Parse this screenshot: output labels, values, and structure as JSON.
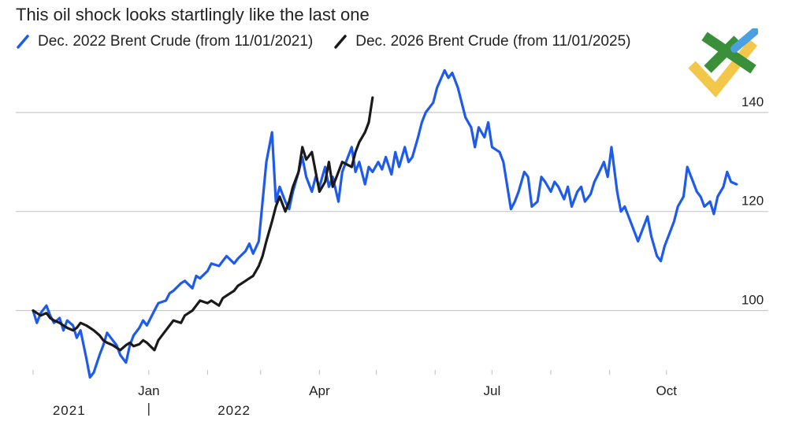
{
  "colors": {
    "series_a": "#1f5bea",
    "series_b": "#1a1a1a",
    "grid": "#c9c9c9",
    "text": "#222222",
    "logo_green": "#3a8f3a",
    "logo_yellow": "#f3c84a",
    "logo_blue": "#4aa0e0"
  },
  "chart_data": {
    "type": "line",
    "title": "This oil shock looks startlingly like the last one",
    "xlabel": "",
    "ylabel": "",
    "grid": true,
    "legend_position": "top-left",
    "ylim": [
      88,
      150
    ],
    "y_ticks": [
      {
        "value": 140,
        "label": "140"
      },
      {
        "value": 120,
        "label": "120"
      },
      {
        "value": 100,
        "label": "100"
      }
    ],
    "x_ticks": [
      {
        "date": "2022-01-01",
        "label": "Jan"
      },
      {
        "date": "2022-04-01",
        "label": "Apr"
      },
      {
        "date": "2022-07-01",
        "label": "Jul"
      },
      {
        "date": "2022-10-01",
        "label": "Oct"
      }
    ],
    "x_minor_ticks": [
      "2021-11-01",
      "2021-12-01",
      "2022-02-01",
      "2022-03-01",
      "2022-05-01",
      "2022-06-01",
      "2022-08-01",
      "2022-09-01"
    ],
    "year_labels": [
      {
        "date": "2021-11-20",
        "label": "2021"
      },
      {
        "date": "2022-02-15",
        "label": "2022"
      }
    ],
    "year_divider": "2022-01-01",
    "xlim": [
      "2021-10-27",
      "2022-11-05"
    ],
    "series": [
      {
        "name": "Dec. 2022 Brent Crude (from 11/01/2021)",
        "points": [
          [
            "2021-11-01",
            100
          ],
          [
            "2021-11-03",
            97.5
          ],
          [
            "2021-11-05",
            99.5
          ],
          [
            "2021-11-08",
            101
          ],
          [
            "2021-11-10",
            99
          ],
          [
            "2021-11-12",
            97.5
          ],
          [
            "2021-11-15",
            98.5
          ],
          [
            "2021-11-17",
            96
          ],
          [
            "2021-11-19",
            98
          ],
          [
            "2021-11-22",
            97
          ],
          [
            "2021-11-24",
            94.5
          ],
          [
            "2021-11-26",
            96
          ],
          [
            "2021-11-29",
            90.5
          ],
          [
            "2021-12-01",
            86.5
          ],
          [
            "2021-12-03",
            87.5
          ],
          [
            "2021-12-06",
            91
          ],
          [
            "2021-12-08",
            93
          ],
          [
            "2021-12-10",
            95.5
          ],
          [
            "2021-12-13",
            94
          ],
          [
            "2021-12-15",
            93
          ],
          [
            "2021-12-17",
            91
          ],
          [
            "2021-12-20",
            89.5
          ],
          [
            "2021-12-22",
            93
          ],
          [
            "2021-12-24",
            95
          ],
          [
            "2021-12-27",
            96.5
          ],
          [
            "2021-12-29",
            98
          ],
          [
            "2021-12-31",
            97
          ],
          [
            "2022-01-04",
            100
          ],
          [
            "2022-01-06",
            101.5
          ],
          [
            "2022-01-10",
            102
          ],
          [
            "2022-01-12",
            103.5
          ],
          [
            "2022-01-14",
            104
          ],
          [
            "2022-01-18",
            105.5
          ],
          [
            "2022-01-20",
            106
          ],
          [
            "2022-01-24",
            104.5
          ],
          [
            "2022-01-26",
            107
          ],
          [
            "2022-01-28",
            106.5
          ],
          [
            "2022-02-01",
            108
          ],
          [
            "2022-02-03",
            109.5
          ],
          [
            "2022-02-07",
            109
          ],
          [
            "2022-02-09",
            110
          ],
          [
            "2022-02-11",
            111
          ],
          [
            "2022-02-15",
            109.5
          ],
          [
            "2022-02-17",
            110.5
          ],
          [
            "2022-02-21",
            112
          ],
          [
            "2022-02-23",
            113.5
          ],
          [
            "2022-02-25",
            111.5
          ],
          [
            "2022-02-28",
            114
          ],
          [
            "2022-03-02",
            122
          ],
          [
            "2022-03-04",
            130
          ],
          [
            "2022-03-07",
            136
          ],
          [
            "2022-03-09",
            122
          ],
          [
            "2022-03-11",
            125
          ],
          [
            "2022-03-14",
            122
          ],
          [
            "2022-03-16",
            120.5
          ],
          [
            "2022-03-18",
            124
          ],
          [
            "2022-03-21",
            128
          ],
          [
            "2022-03-23",
            131
          ],
          [
            "2022-03-25",
            127
          ],
          [
            "2022-03-28",
            124
          ],
          [
            "2022-03-30",
            127
          ],
          [
            "2022-04-01",
            125
          ],
          [
            "2022-04-04",
            129
          ],
          [
            "2022-04-06",
            125
          ],
          [
            "2022-04-08",
            127
          ],
          [
            "2022-04-11",
            122
          ],
          [
            "2022-04-13",
            128
          ],
          [
            "2022-04-18",
            133
          ],
          [
            "2022-04-20",
            128
          ],
          [
            "2022-04-22",
            130
          ],
          [
            "2022-04-25",
            125.5
          ],
          [
            "2022-04-27",
            129
          ],
          [
            "2022-04-29",
            128
          ],
          [
            "2022-05-02",
            130
          ],
          [
            "2022-05-04",
            128.5
          ],
          [
            "2022-05-06",
            131
          ],
          [
            "2022-05-09",
            127.5
          ],
          [
            "2022-05-11",
            132
          ],
          [
            "2022-05-13",
            129
          ],
          [
            "2022-05-16",
            133
          ],
          [
            "2022-05-18",
            130
          ],
          [
            "2022-05-20",
            131
          ],
          [
            "2022-05-23",
            135
          ],
          [
            "2022-05-25",
            138
          ],
          [
            "2022-05-27",
            140
          ],
          [
            "2022-05-31",
            142
          ],
          [
            "2022-06-02",
            145
          ],
          [
            "2022-06-06",
            148.5
          ],
          [
            "2022-06-08",
            147
          ],
          [
            "2022-06-10",
            148
          ],
          [
            "2022-06-13",
            145
          ],
          [
            "2022-06-15",
            142
          ],
          [
            "2022-06-17",
            139
          ],
          [
            "2022-06-20",
            137
          ],
          [
            "2022-06-22",
            133
          ],
          [
            "2022-06-24",
            137
          ],
          [
            "2022-06-27",
            135
          ],
          [
            "2022-06-29",
            138
          ],
          [
            "2022-07-01",
            133
          ],
          [
            "2022-07-05",
            132
          ],
          [
            "2022-07-07",
            130
          ],
          [
            "2022-07-11",
            120.5
          ],
          [
            "2022-07-13",
            122
          ],
          [
            "2022-07-15",
            124
          ],
          [
            "2022-07-18",
            128
          ],
          [
            "2022-07-20",
            127
          ],
          [
            "2022-07-22",
            121
          ],
          [
            "2022-07-25",
            122
          ],
          [
            "2022-07-27",
            127
          ],
          [
            "2022-07-29",
            126
          ],
          [
            "2022-08-01",
            124
          ],
          [
            "2022-08-03",
            126
          ],
          [
            "2022-08-05",
            125
          ],
          [
            "2022-08-08",
            122.5
          ],
          [
            "2022-08-10",
            125
          ],
          [
            "2022-08-12",
            121
          ],
          [
            "2022-08-15",
            124
          ],
          [
            "2022-08-17",
            125
          ],
          [
            "2022-08-19",
            122
          ],
          [
            "2022-08-22",
            123.5
          ],
          [
            "2022-08-24",
            126
          ],
          [
            "2022-08-26",
            127.5
          ],
          [
            "2022-08-29",
            130
          ],
          [
            "2022-08-31",
            127
          ],
          [
            "2022-09-02",
            133
          ],
          [
            "2022-09-05",
            124
          ],
          [
            "2022-09-07",
            120
          ],
          [
            "2022-09-09",
            121
          ],
          [
            "2022-09-12",
            118
          ],
          [
            "2022-09-14",
            116
          ],
          [
            "2022-09-16",
            114
          ],
          [
            "2022-09-19",
            117
          ],
          [
            "2022-09-21",
            119
          ],
          [
            "2022-09-23",
            115
          ],
          [
            "2022-09-26",
            111
          ],
          [
            "2022-09-28",
            110
          ],
          [
            "2022-09-30",
            113
          ],
          [
            "2022-10-03",
            116
          ],
          [
            "2022-10-05",
            118
          ],
          [
            "2022-10-07",
            121
          ],
          [
            "2022-10-10",
            123
          ],
          [
            "2022-10-12",
            129
          ],
          [
            "2022-10-14",
            127
          ],
          [
            "2022-10-17",
            124
          ],
          [
            "2022-10-19",
            123
          ],
          [
            "2022-10-21",
            121
          ],
          [
            "2022-10-24",
            122
          ],
          [
            "2022-10-26",
            119.5
          ],
          [
            "2022-10-28",
            123
          ],
          [
            "2022-10-31",
            125
          ],
          [
            "2022-11-02",
            128
          ],
          [
            "2022-11-04",
            126
          ],
          [
            "2022-11-07",
            125.5
          ]
        ]
      },
      {
        "name": "Dec. 2026 Brent Crude (from 11/01/2025)",
        "points": [
          [
            "2021-11-01",
            100
          ],
          [
            "2021-11-03",
            99.5
          ],
          [
            "2021-11-05",
            99
          ],
          [
            "2021-11-08",
            99.5
          ],
          [
            "2021-11-10",
            98.5
          ],
          [
            "2021-11-12",
            98
          ],
          [
            "2021-11-15",
            97.5
          ],
          [
            "2021-11-17",
            97
          ],
          [
            "2021-11-19",
            96.5
          ],
          [
            "2021-11-22",
            96
          ],
          [
            "2021-11-24",
            96.5
          ],
          [
            "2021-11-26",
            97.5
          ],
          [
            "2021-11-29",
            97
          ],
          [
            "2021-12-01",
            96.5
          ],
          [
            "2021-12-03",
            96
          ],
          [
            "2021-12-06",
            95
          ],
          [
            "2021-12-08",
            94
          ],
          [
            "2021-12-10",
            93.5
          ],
          [
            "2021-12-13",
            93
          ],
          [
            "2021-12-15",
            92.5
          ],
          [
            "2021-12-17",
            92
          ],
          [
            "2021-12-20",
            93
          ],
          [
            "2021-12-22",
            93.5
          ],
          [
            "2021-12-24",
            92.8
          ],
          [
            "2021-12-27",
            93.2
          ],
          [
            "2021-12-29",
            94
          ],
          [
            "2021-12-31",
            93.5
          ],
          [
            "2022-01-04",
            92
          ],
          [
            "2022-01-06",
            94
          ],
          [
            "2022-01-10",
            96
          ],
          [
            "2022-01-12",
            97
          ],
          [
            "2022-01-14",
            98
          ],
          [
            "2022-01-18",
            97.5
          ],
          [
            "2022-01-20",
            99
          ],
          [
            "2022-01-24",
            100
          ],
          [
            "2022-01-26",
            101
          ],
          [
            "2022-01-28",
            102
          ],
          [
            "2022-02-01",
            101.5
          ],
          [
            "2022-02-03",
            102
          ],
          [
            "2022-02-07",
            101
          ],
          [
            "2022-02-09",
            102.5
          ],
          [
            "2022-02-11",
            103
          ],
          [
            "2022-02-15",
            104
          ],
          [
            "2022-02-17",
            105
          ],
          [
            "2022-02-21",
            106
          ],
          [
            "2022-02-23",
            106.5
          ],
          [
            "2022-02-25",
            107
          ],
          [
            "2022-02-28",
            109
          ],
          [
            "2022-03-02",
            111
          ],
          [
            "2022-03-04",
            114
          ],
          [
            "2022-03-07",
            118
          ],
          [
            "2022-03-09",
            121
          ],
          [
            "2022-03-11",
            123
          ],
          [
            "2022-03-14",
            120
          ],
          [
            "2022-03-16",
            122
          ],
          [
            "2022-03-18",
            125
          ],
          [
            "2022-03-21",
            128
          ],
          [
            "2022-03-23",
            133
          ],
          [
            "2022-03-25",
            130.5
          ],
          [
            "2022-03-28",
            132
          ],
          [
            "2022-03-30",
            128
          ],
          [
            "2022-04-01",
            124
          ],
          [
            "2022-04-04",
            126
          ],
          [
            "2022-04-06",
            130
          ],
          [
            "2022-04-08",
            125
          ],
          [
            "2022-04-11",
            128
          ],
          [
            "2022-04-13",
            130
          ],
          [
            "2022-04-18",
            129
          ],
          [
            "2022-04-20",
            132
          ],
          [
            "2022-04-22",
            134
          ],
          [
            "2022-04-25",
            136
          ],
          [
            "2022-04-27",
            138
          ],
          [
            "2022-04-29",
            143
          ]
        ]
      }
    ]
  }
}
